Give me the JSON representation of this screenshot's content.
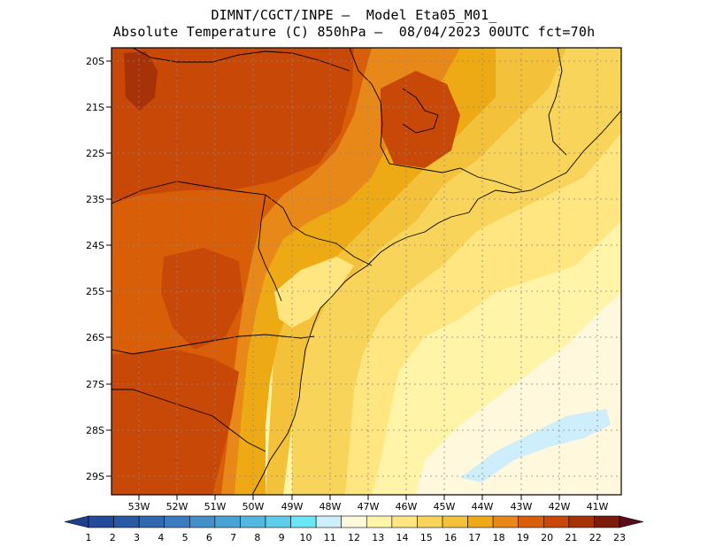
{
  "header": {
    "line1": "DIMNT/CGCT/INPE —  Model Eta05_M01_",
    "line2": "Absolute Temperature (C) 850hPa —  08/04/2023 00UTC fct=70h"
  },
  "axes": {
    "lat_labels": [
      "20S",
      "21S",
      "22S",
      "23S",
      "24S",
      "25S",
      "26S",
      "27S",
      "28S",
      "29S"
    ],
    "lon_labels": [
      "53W",
      "52W",
      "51W",
      "50W",
      "49W",
      "48W",
      "47W",
      "46W",
      "45W",
      "44W",
      "43W",
      "42W",
      "41W"
    ]
  },
  "colorbar": {
    "labels": [
      "1",
      "2",
      "3",
      "4",
      "5",
      "6",
      "7",
      "8",
      "9",
      "10",
      "11",
      "12",
      "13",
      "14",
      "15",
      "16",
      "17",
      "18",
      "19",
      "20",
      "21",
      "22",
      "23"
    ],
    "colors": [
      "#1f3f8f",
      "#234b99",
      "#2a5aa5",
      "#3168b0",
      "#3a7cbf",
      "#438fca",
      "#4aa3d5",
      "#52b8df",
      "#5fcdea",
      "#6ae6f4",
      "#cdeefa",
      "#fff8dc",
      "#fff4a8",
      "#ffe680",
      "#f8d45a",
      "#f3c23a",
      "#eeaa14",
      "#e88818",
      "#d85e08",
      "#c84808",
      "#a83208",
      "#7a1c08",
      "#5a0a1a"
    ]
  },
  "map_fields": {
    "colors": {
      "t20": "#c84808",
      "t19": "#d85e08",
      "t18": "#e88818",
      "t17": "#eeaa14",
      "t16": "#f3c23a",
      "t15": "#f8d45a",
      "t14": "#ffe680",
      "t13": "#fff4a8",
      "t12": "#fff8dc",
      "t11": "#cdeefa",
      "t21": "#a83208"
    }
  }
}
